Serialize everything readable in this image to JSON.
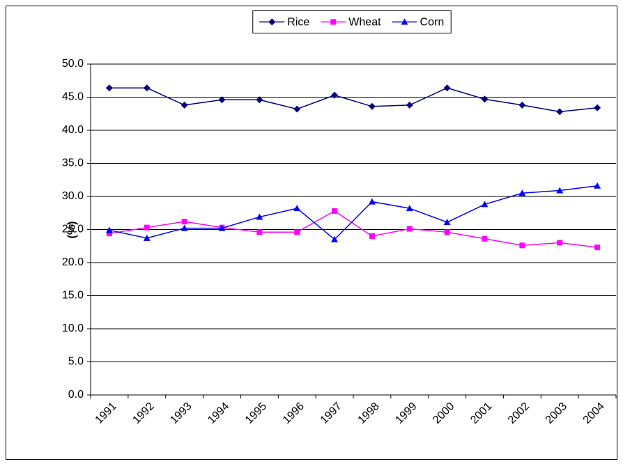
{
  "chart_data": {
    "type": "line",
    "y_label": "(%)",
    "categories": [
      "1991",
      "1992",
      "1993",
      "1994",
      "1995",
      "1996",
      "1997",
      "1998",
      "1999",
      "2000",
      "2001",
      "2002",
      "2003",
      "2004"
    ],
    "series": [
      {
        "name": "Rice",
        "color": "#000080",
        "values": [
          46.4,
          46.4,
          43.8,
          44.6,
          44.6,
          43.2,
          45.3,
          43.6,
          43.8,
          46.4,
          44.7,
          43.8,
          42.8,
          43.4
        ]
      },
      {
        "name": "Wheat",
        "color": "#ff00ff",
        "values": [
          24.4,
          25.3,
          26.2,
          25.3,
          24.6,
          24.6,
          27.8,
          24.0,
          25.1,
          24.6,
          23.6,
          22.6,
          23.0,
          22.3
        ]
      },
      {
        "name": "Corn",
        "color": "#0000ff",
        "values": [
          24.9,
          23.7,
          25.2,
          25.2,
          26.9,
          28.2,
          23.5,
          29.2,
          28.2,
          26.1,
          28.8,
          30.5,
          30.9,
          31.6
        ]
      }
    ],
    "ylim": [
      0,
      50
    ],
    "yticks": [
      {
        "value": 0,
        "label": "0.0"
      },
      {
        "value": 5,
        "label": "5.0"
      },
      {
        "value": 10,
        "label": "10.0"
      },
      {
        "value": 15,
        "label": "15.0"
      },
      {
        "value": 20,
        "label": "20.0"
      },
      {
        "value": 25,
        "label": "25.0"
      },
      {
        "value": 30,
        "label": "30.0"
      },
      {
        "value": 35,
        "label": "35.0"
      },
      {
        "value": 40,
        "label": "40.0"
      },
      {
        "value": 45,
        "label": "45.0"
      },
      {
        "value": 50,
        "label": "50.0"
      }
    ],
    "grid": true,
    "legend": "top"
  }
}
